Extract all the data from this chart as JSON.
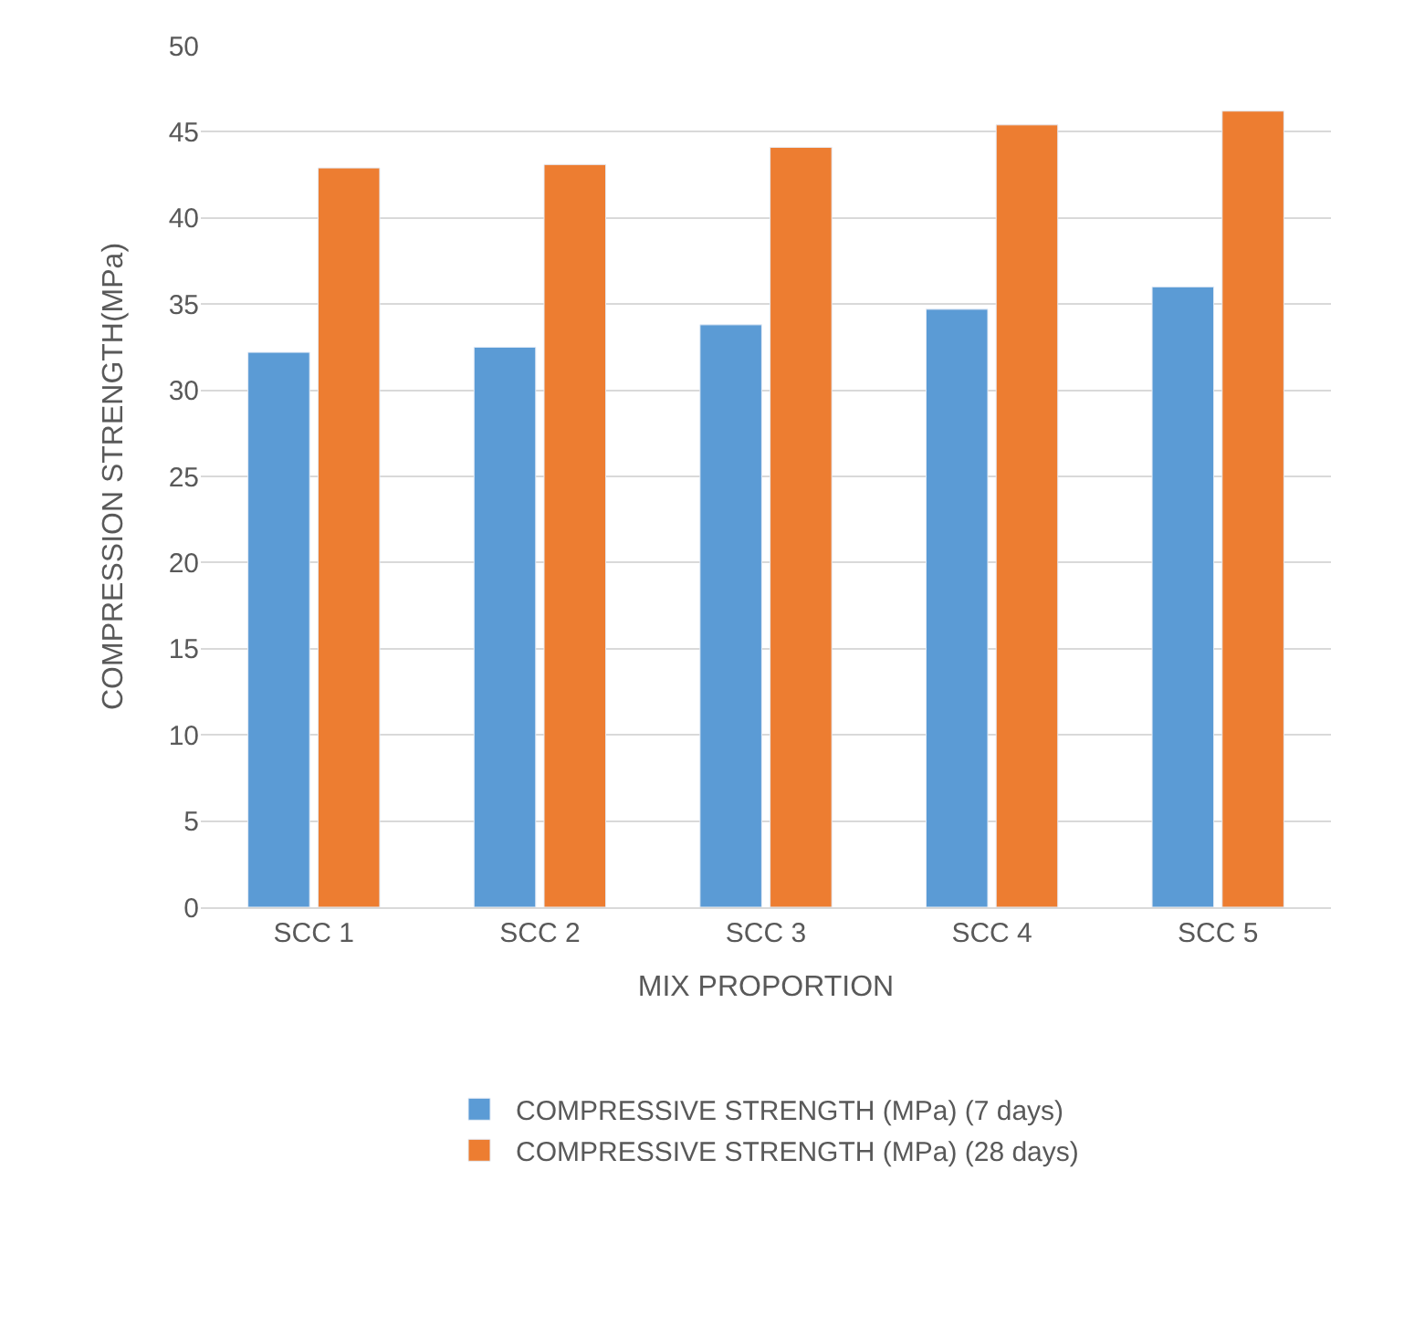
{
  "chart_data": {
    "type": "bar",
    "xlabel": "MIX PROPORTION",
    "ylabel": "COMPRESSION STRENGTH(MPa)",
    "categories": [
      "SCC 1",
      "SCC 2",
      "SCC 3",
      "SCC 4",
      "SCC 5"
    ],
    "series": [
      {
        "name": "COMPRESSIVE STRENGTH (MPa) (7 days)",
        "color": "#5b9bd5",
        "values": [
          32.2,
          32.5,
          33.8,
          34.7,
          36.0
        ]
      },
      {
        "name": "COMPRESSIVE STRENGTH (MPa) (28 days)",
        "color": "#ed7d31",
        "values": [
          42.9,
          43.1,
          44.1,
          45.4,
          46.2
        ]
      }
    ],
    "ylim": [
      0,
      50
    ],
    "yticks": [
      0,
      5,
      10,
      15,
      20,
      25,
      30,
      35,
      40,
      45,
      50
    ],
    "grid": "y",
    "legend": "bottom"
  }
}
